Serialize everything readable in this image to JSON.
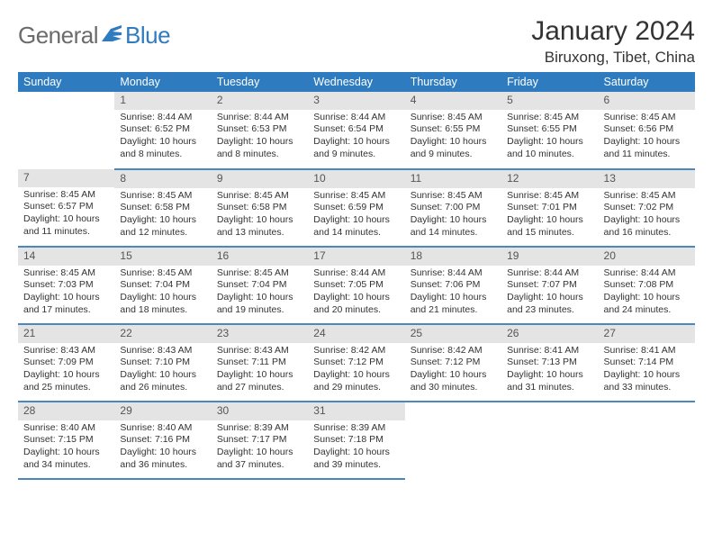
{
  "logo": {
    "general": "General",
    "blue": "Blue"
  },
  "colors": {
    "header_bg": "#2f7bbf",
    "header_text": "#ffffff",
    "daybar_bg": "#e4e4e4",
    "row_divider": "#4a88bd",
    "body_text": "#333333",
    "logo_gray": "#6b6b6b",
    "logo_blue": "#2f7bbf"
  },
  "title": {
    "month": "January 2024",
    "location": "Biruxong, Tibet, China"
  },
  "weekdays": [
    "Sunday",
    "Monday",
    "Tuesday",
    "Wednesday",
    "Thursday",
    "Friday",
    "Saturday"
  ],
  "weeks": [
    [
      null,
      {
        "n": "1",
        "sr": "Sunrise: 8:44 AM",
        "ss": "Sunset: 6:52 PM",
        "d1": "Daylight: 10 hours",
        "d2": "and 8 minutes."
      },
      {
        "n": "2",
        "sr": "Sunrise: 8:44 AM",
        "ss": "Sunset: 6:53 PM",
        "d1": "Daylight: 10 hours",
        "d2": "and 8 minutes."
      },
      {
        "n": "3",
        "sr": "Sunrise: 8:44 AM",
        "ss": "Sunset: 6:54 PM",
        "d1": "Daylight: 10 hours",
        "d2": "and 9 minutes."
      },
      {
        "n": "4",
        "sr": "Sunrise: 8:45 AM",
        "ss": "Sunset: 6:55 PM",
        "d1": "Daylight: 10 hours",
        "d2": "and 9 minutes."
      },
      {
        "n": "5",
        "sr": "Sunrise: 8:45 AM",
        "ss": "Sunset: 6:55 PM",
        "d1": "Daylight: 10 hours",
        "d2": "and 10 minutes."
      },
      {
        "n": "6",
        "sr": "Sunrise: 8:45 AM",
        "ss": "Sunset: 6:56 PM",
        "d1": "Daylight: 10 hours",
        "d2": "and 11 minutes."
      }
    ],
    [
      {
        "n": "7",
        "sr": "Sunrise: 8:45 AM",
        "ss": "Sunset: 6:57 PM",
        "d1": "Daylight: 10 hours",
        "d2": "and 11 minutes."
      },
      {
        "n": "8",
        "sr": "Sunrise: 8:45 AM",
        "ss": "Sunset: 6:58 PM",
        "d1": "Daylight: 10 hours",
        "d2": "and 12 minutes."
      },
      {
        "n": "9",
        "sr": "Sunrise: 8:45 AM",
        "ss": "Sunset: 6:58 PM",
        "d1": "Daylight: 10 hours",
        "d2": "and 13 minutes."
      },
      {
        "n": "10",
        "sr": "Sunrise: 8:45 AM",
        "ss": "Sunset: 6:59 PM",
        "d1": "Daylight: 10 hours",
        "d2": "and 14 minutes."
      },
      {
        "n": "11",
        "sr": "Sunrise: 8:45 AM",
        "ss": "Sunset: 7:00 PM",
        "d1": "Daylight: 10 hours",
        "d2": "and 14 minutes."
      },
      {
        "n": "12",
        "sr": "Sunrise: 8:45 AM",
        "ss": "Sunset: 7:01 PM",
        "d1": "Daylight: 10 hours",
        "d2": "and 15 minutes."
      },
      {
        "n": "13",
        "sr": "Sunrise: 8:45 AM",
        "ss": "Sunset: 7:02 PM",
        "d1": "Daylight: 10 hours",
        "d2": "and 16 minutes."
      }
    ],
    [
      {
        "n": "14",
        "sr": "Sunrise: 8:45 AM",
        "ss": "Sunset: 7:03 PM",
        "d1": "Daylight: 10 hours",
        "d2": "and 17 minutes."
      },
      {
        "n": "15",
        "sr": "Sunrise: 8:45 AM",
        "ss": "Sunset: 7:04 PM",
        "d1": "Daylight: 10 hours",
        "d2": "and 18 minutes."
      },
      {
        "n": "16",
        "sr": "Sunrise: 8:45 AM",
        "ss": "Sunset: 7:04 PM",
        "d1": "Daylight: 10 hours",
        "d2": "and 19 minutes."
      },
      {
        "n": "17",
        "sr": "Sunrise: 8:44 AM",
        "ss": "Sunset: 7:05 PM",
        "d1": "Daylight: 10 hours",
        "d2": "and 20 minutes."
      },
      {
        "n": "18",
        "sr": "Sunrise: 8:44 AM",
        "ss": "Sunset: 7:06 PM",
        "d1": "Daylight: 10 hours",
        "d2": "and 21 minutes."
      },
      {
        "n": "19",
        "sr": "Sunrise: 8:44 AM",
        "ss": "Sunset: 7:07 PM",
        "d1": "Daylight: 10 hours",
        "d2": "and 23 minutes."
      },
      {
        "n": "20",
        "sr": "Sunrise: 8:44 AM",
        "ss": "Sunset: 7:08 PM",
        "d1": "Daylight: 10 hours",
        "d2": "and 24 minutes."
      }
    ],
    [
      {
        "n": "21",
        "sr": "Sunrise: 8:43 AM",
        "ss": "Sunset: 7:09 PM",
        "d1": "Daylight: 10 hours",
        "d2": "and 25 minutes."
      },
      {
        "n": "22",
        "sr": "Sunrise: 8:43 AM",
        "ss": "Sunset: 7:10 PM",
        "d1": "Daylight: 10 hours",
        "d2": "and 26 minutes."
      },
      {
        "n": "23",
        "sr": "Sunrise: 8:43 AM",
        "ss": "Sunset: 7:11 PM",
        "d1": "Daylight: 10 hours",
        "d2": "and 27 minutes."
      },
      {
        "n": "24",
        "sr": "Sunrise: 8:42 AM",
        "ss": "Sunset: 7:12 PM",
        "d1": "Daylight: 10 hours",
        "d2": "and 29 minutes."
      },
      {
        "n": "25",
        "sr": "Sunrise: 8:42 AM",
        "ss": "Sunset: 7:12 PM",
        "d1": "Daylight: 10 hours",
        "d2": "and 30 minutes."
      },
      {
        "n": "26",
        "sr": "Sunrise: 8:41 AM",
        "ss": "Sunset: 7:13 PM",
        "d1": "Daylight: 10 hours",
        "d2": "and 31 minutes."
      },
      {
        "n": "27",
        "sr": "Sunrise: 8:41 AM",
        "ss": "Sunset: 7:14 PM",
        "d1": "Daylight: 10 hours",
        "d2": "and 33 minutes."
      }
    ],
    [
      {
        "n": "28",
        "sr": "Sunrise: 8:40 AM",
        "ss": "Sunset: 7:15 PM",
        "d1": "Daylight: 10 hours",
        "d2": "and 34 minutes."
      },
      {
        "n": "29",
        "sr": "Sunrise: 8:40 AM",
        "ss": "Sunset: 7:16 PM",
        "d1": "Daylight: 10 hours",
        "d2": "and 36 minutes."
      },
      {
        "n": "30",
        "sr": "Sunrise: 8:39 AM",
        "ss": "Sunset: 7:17 PM",
        "d1": "Daylight: 10 hours",
        "d2": "and 37 minutes."
      },
      {
        "n": "31",
        "sr": "Sunrise: 8:39 AM",
        "ss": "Sunset: 7:18 PM",
        "d1": "Daylight: 10 hours",
        "d2": "and 39 minutes."
      },
      null,
      null,
      null
    ]
  ]
}
